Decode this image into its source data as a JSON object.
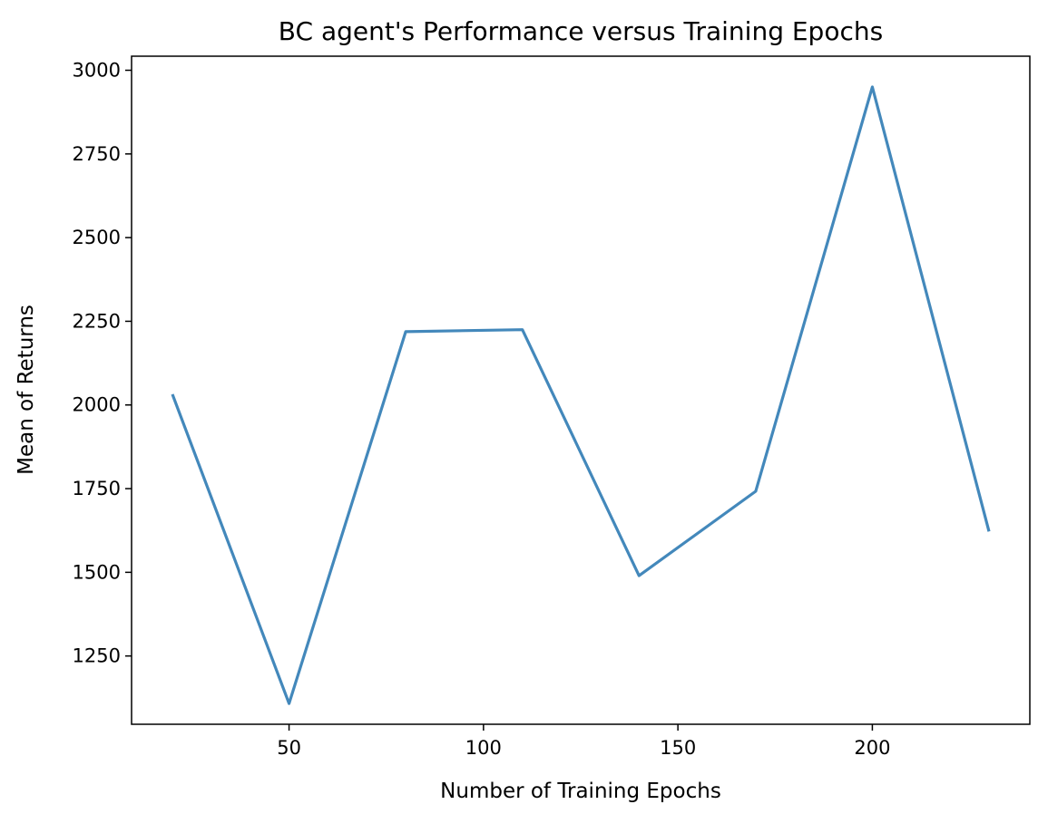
{
  "chart_data": {
    "type": "line",
    "title": "BC agent's Performance versus Training Epochs",
    "xlabel": "Number of Training Epochs",
    "ylabel": "Mean of Returns",
    "x": [
      20,
      50,
      80,
      110,
      140,
      170,
      200,
      230
    ],
    "series": [
      {
        "values": [
          2032,
          1108,
          2219,
          2225,
          1490,
          1742,
          2950,
          1622
        ],
        "color": "#4388bb"
      }
    ],
    "xlim": [
      9.5,
      240.5
    ],
    "ylim": [
      1046,
      3042
    ],
    "xticks": [
      50,
      100,
      150,
      200
    ],
    "yticks": [
      1250,
      1500,
      1750,
      2000,
      2250,
      2500,
      2750,
      3000
    ],
    "grid": false,
    "legend": "none"
  }
}
